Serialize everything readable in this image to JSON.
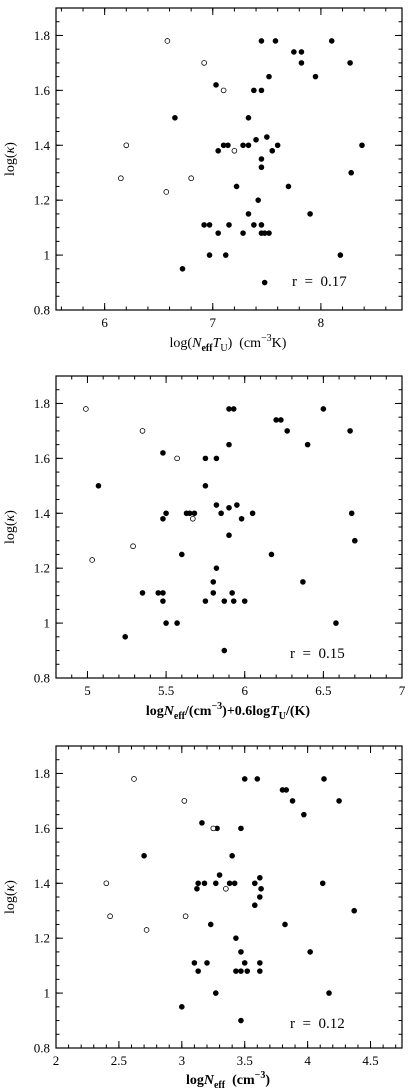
{
  "chart_data": [
    {
      "type": "scatter",
      "xlabel": "log(N_eff T_U) (cm^-3 K)",
      "xlabel_parts": {
        "pre": "log(",
        "n": "N",
        "eff": "eff",
        "t": "T",
        "u": "U",
        "post": ")  (cm",
        "exp": "−3",
        "tail": "K)"
      },
      "ylabel": "log(κ)",
      "ylabel_parts": {
        "pre": "log(",
        "kappa": "κ",
        "post": ")"
      },
      "xlim": [
        5.55,
        8.75
      ],
      "ylim": [
        0.8,
        1.9
      ],
      "xticks": [
        6,
        7,
        8
      ],
      "xtick_labels": [
        "6",
        "7",
        "8"
      ],
      "yticks": [
        0.8,
        1.0,
        1.2,
        1.4,
        1.6,
        1.8
      ],
      "ytick_labels": [
        "0.8",
        "1",
        "1.2",
        "1.4",
        "1.6",
        "1.8"
      ],
      "annotation": "r  =  0.17",
      "series": [
        {
          "marker": "filled",
          "points": [
            [
              7.45,
              1.78
            ],
            [
              7.58,
              1.78
            ],
            [
              8.1,
              1.78
            ],
            [
              7.75,
              1.74
            ],
            [
              7.82,
              1.74
            ],
            [
              7.82,
              1.7
            ],
            [
              8.27,
              1.7
            ],
            [
              7.52,
              1.65
            ],
            [
              7.95,
              1.65
            ],
            [
              7.03,
              1.62
            ],
            [
              7.38,
              1.6
            ],
            [
              7.45,
              1.6
            ],
            [
              6.65,
              1.5
            ],
            [
              7.33,
              1.5
            ],
            [
              7.05,
              1.38
            ],
            [
              7.1,
              1.4
            ],
            [
              7.14,
              1.4
            ],
            [
              7.28,
              1.4
            ],
            [
              7.33,
              1.4
            ],
            [
              7.4,
              1.42
            ],
            [
              7.5,
              1.43
            ],
            [
              7.55,
              1.38
            ],
            [
              7.6,
              1.4
            ],
            [
              8.38,
              1.4
            ],
            [
              7.45,
              1.32
            ],
            [
              7.45,
              1.35
            ],
            [
              7.22,
              1.25
            ],
            [
              7.7,
              1.25
            ],
            [
              8.28,
              1.3
            ],
            [
              7.42,
              1.2
            ],
            [
              7.33,
              1.15
            ],
            [
              7.9,
              1.15
            ],
            [
              6.92,
              1.11
            ],
            [
              6.97,
              1.11
            ],
            [
              7.15,
              1.11
            ],
            [
              7.38,
              1.11
            ],
            [
              7.45,
              1.11
            ],
            [
              7.05,
              1.08
            ],
            [
              7.28,
              1.08
            ],
            [
              7.45,
              1.08
            ],
            [
              7.48,
              1.08
            ],
            [
              7.52,
              1.08
            ],
            [
              6.97,
              1.0
            ],
            [
              7.12,
              1.0
            ],
            [
              8.18,
              1.0
            ],
            [
              6.72,
              0.95
            ],
            [
              7.48,
              0.9
            ]
          ]
        },
        {
          "marker": "open",
          "points": [
            [
              6.58,
              1.78
            ],
            [
              6.92,
              1.7
            ],
            [
              7.1,
              1.6
            ],
            [
              6.2,
              1.4
            ],
            [
              7.2,
              1.38
            ],
            [
              6.15,
              1.28
            ],
            [
              6.8,
              1.28
            ],
            [
              6.57,
              1.23
            ]
          ]
        }
      ]
    },
    {
      "type": "scatter",
      "xlabel": "logN_eff/(cm^-3)+0.6logT_U/(K)",
      "xlabel_parts": {
        "pre": "log",
        "n": "N",
        "eff": "eff",
        "mid1": "/(cm",
        "exp": "−3",
        "mid2": ")+0.6log",
        "t": "T",
        "u": "U",
        "post": "/(K)"
      },
      "ylabel": "log(κ)",
      "ylabel_parts": {
        "pre": "log(",
        "kappa": "κ",
        "post": ")"
      },
      "xlim": [
        4.8,
        7.0
      ],
      "ylim": [
        0.8,
        1.9
      ],
      "xticks": [
        5,
        5.5,
        6,
        6.5,
        7
      ],
      "xtick_labels": [
        "5",
        "5.5",
        "6",
        "6.5",
        "7"
      ],
      "yticks": [
        0.8,
        1.0,
        1.2,
        1.4,
        1.6,
        1.8
      ],
      "ytick_labels": [
        "0.8",
        "1",
        "1.2",
        "1.4",
        "1.6",
        "1.8"
      ],
      "annotation": "r  =  0.15",
      "series": [
        {
          "marker": "filled",
          "points": [
            [
              5.9,
              1.78
            ],
            [
              5.93,
              1.78
            ],
            [
              6.5,
              1.78
            ],
            [
              6.2,
              1.74
            ],
            [
              6.23,
              1.74
            ],
            [
              6.27,
              1.7
            ],
            [
              6.67,
              1.7
            ],
            [
              5.9,
              1.65
            ],
            [
              6.4,
              1.65
            ],
            [
              5.48,
              1.62
            ],
            [
              5.75,
              1.6
            ],
            [
              5.82,
              1.6
            ],
            [
              5.07,
              1.5
            ],
            [
              5.75,
              1.5
            ],
            [
              5.48,
              1.38
            ],
            [
              5.5,
              1.4
            ],
            [
              5.63,
              1.4
            ],
            [
              5.65,
              1.4
            ],
            [
              5.68,
              1.4
            ],
            [
              5.82,
              1.43
            ],
            [
              5.85,
              1.4
            ],
            [
              5.9,
              1.42
            ],
            [
              5.95,
              1.43
            ],
            [
              5.98,
              1.38
            ],
            [
              6.05,
              1.4
            ],
            [
              6.68,
              1.4
            ],
            [
              5.9,
              1.32
            ],
            [
              5.6,
              1.25
            ],
            [
              6.17,
              1.25
            ],
            [
              6.7,
              1.3
            ],
            [
              5.82,
              1.2
            ],
            [
              5.8,
              1.15
            ],
            [
              6.37,
              1.15
            ],
            [
              5.35,
              1.11
            ],
            [
              5.48,
              1.11
            ],
            [
              5.92,
              1.11
            ],
            [
              5.45,
              1.11
            ],
            [
              5.8,
              1.11
            ],
            [
              5.48,
              1.08
            ],
            [
              5.75,
              1.08
            ],
            [
              5.87,
              1.08
            ],
            [
              5.93,
              1.08
            ],
            [
              6.0,
              1.08
            ],
            [
              5.5,
              1.0
            ],
            [
              5.57,
              1.0
            ],
            [
              6.58,
              1.0
            ],
            [
              5.24,
              0.95
            ],
            [
              5.87,
              0.9
            ]
          ]
        },
        {
          "marker": "open",
          "points": [
            [
              4.99,
              1.78
            ],
            [
              5.35,
              1.7
            ],
            [
              5.57,
              1.6
            ],
            [
              5.67,
              1.38
            ],
            [
              5.29,
              1.28
            ],
            [
              5.03,
              1.23
            ]
          ]
        }
      ]
    },
    {
      "type": "scatter",
      "xlabel": "logN_eff (cm^-3)",
      "xlabel_parts": {
        "pre": "log",
        "n": "N",
        "eff": "eff",
        "post": "  (cm",
        "exp": "−3",
        "tail": ")"
      },
      "ylabel": "log(κ)",
      "ylabel_parts": {
        "pre": "log(",
        "kappa": "κ",
        "post": ")"
      },
      "xlim": [
        2.0,
        4.75
      ],
      "ylim": [
        0.8,
        1.9
      ],
      "xticks": [
        2,
        2.5,
        3,
        3.5,
        4,
        4.5
      ],
      "xtick_labels": [
        "2",
        "2.5",
        "3",
        "3.5",
        "4",
        "4.5"
      ],
      "yticks": [
        0.8,
        1.0,
        1.2,
        1.4,
        1.6,
        1.8
      ],
      "ytick_labels": [
        "0.8",
        "1",
        "1.2",
        "1.4",
        "1.6",
        "1.8"
      ],
      "annotation": "r  =  0.12",
      "series": [
        {
          "marker": "filled",
          "points": [
            [
              3.5,
              1.78
            ],
            [
              3.6,
              1.78
            ],
            [
              4.13,
              1.78
            ],
            [
              3.8,
              1.74
            ],
            [
              3.83,
              1.74
            ],
            [
              3.88,
              1.7
            ],
            [
              4.25,
              1.7
            ],
            [
              3.97,
              1.65
            ],
            [
              3.16,
              1.62
            ],
            [
              3.28,
              1.6
            ],
            [
              3.47,
              1.6
            ],
            [
              2.7,
              1.5
            ],
            [
              3.4,
              1.5
            ],
            [
              3.12,
              1.38
            ],
            [
              3.13,
              1.4
            ],
            [
              3.18,
              1.4
            ],
            [
              3.27,
              1.4
            ],
            [
              3.3,
              1.43
            ],
            [
              3.38,
              1.4
            ],
            [
              3.42,
              1.4
            ],
            [
              3.58,
              1.4
            ],
            [
              3.62,
              1.42
            ],
            [
              3.63,
              1.38
            ],
            [
              3.58,
              1.32
            ],
            [
              4.12,
              1.4
            ],
            [
              3.23,
              1.25
            ],
            [
              3.62,
              1.35
            ],
            [
              3.82,
              1.25
            ],
            [
              4.37,
              1.3
            ],
            [
              3.43,
              1.2
            ],
            [
              3.47,
              1.15
            ],
            [
              4.02,
              1.15
            ],
            [
              3.1,
              1.11
            ],
            [
              3.2,
              1.11
            ],
            [
              3.5,
              1.11
            ],
            [
              3.62,
              1.11
            ],
            [
              3.13,
              1.08
            ],
            [
              3.43,
              1.08
            ],
            [
              3.47,
              1.08
            ],
            [
              3.52,
              1.08
            ],
            [
              3.62,
              1.08
            ],
            [
              3.27,
              1.0
            ],
            [
              4.17,
              1.0
            ],
            [
              3.0,
              0.95
            ],
            [
              3.47,
              0.9
            ]
          ]
        },
        {
          "marker": "open",
          "points": [
            [
              2.62,
              1.78
            ],
            [
              3.02,
              1.7
            ],
            [
              3.25,
              1.6
            ],
            [
              2.4,
              1.4
            ],
            [
              3.35,
              1.38
            ],
            [
              2.43,
              1.28
            ],
            [
              3.03,
              1.28
            ],
            [
              2.72,
              1.23
            ]
          ]
        }
      ]
    }
  ]
}
